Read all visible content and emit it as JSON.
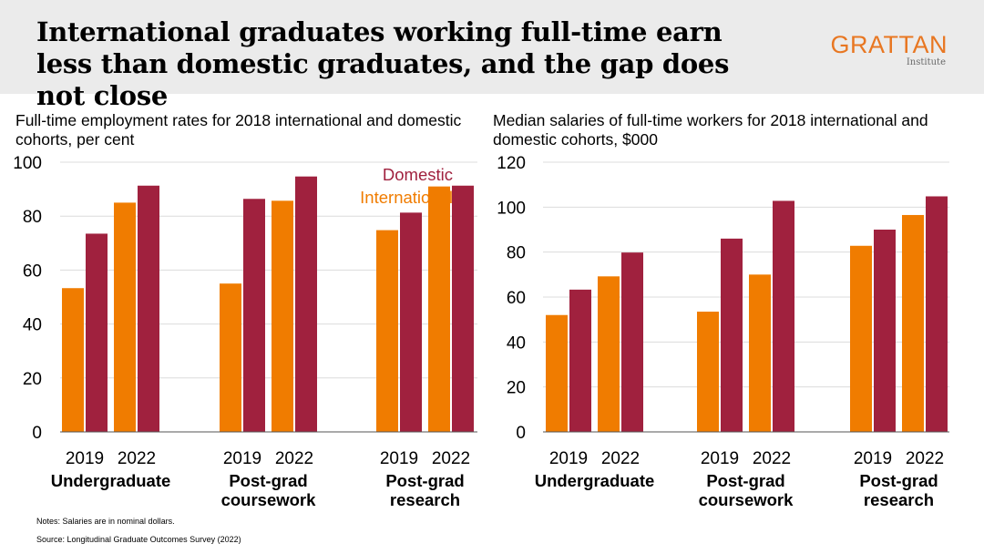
{
  "header": {
    "title": "International graduates working full-time earn less than domestic graduates, and the gap does not close",
    "logo_main": "GRATTAN",
    "logo_sub": "Institute"
  },
  "colors": {
    "international": "#f07c00",
    "domestic": "#a0213e",
    "gridline": "#dcdcdc",
    "axis": "#555555"
  },
  "chart_data": [
    {
      "type": "bar",
      "title": "Full-time employment rates for 2018 international and domestic cohorts, per cent",
      "groups": [
        "Undergraduate",
        "Post-grad coursework",
        "Post-grad research"
      ],
      "group_label_lines": [
        [
          "Undergraduate"
        ],
        [
          "Post-grad",
          "coursework"
        ],
        [
          "Post-grad",
          "research"
        ]
      ],
      "years": [
        "2019",
        "2022"
      ],
      "series": [
        {
          "name": "International",
          "values": [
            53.3,
            85.0,
            55.0,
            85.7,
            74.8,
            91.0
          ]
        },
        {
          "name": "Domestic",
          "values": [
            73.5,
            91.3,
            86.4,
            94.7,
            81.3,
            91.3
          ]
        }
      ],
      "ylim": [
        0,
        100
      ],
      "yticks": [
        0,
        20,
        40,
        60,
        80,
        100
      ],
      "grid": true,
      "legend": "top-right, inline labels"
    },
    {
      "type": "bar",
      "title": "Median salaries of full-time workers for 2018 international and domestic cohorts, $000",
      "groups": [
        "Undergraduate",
        "Post-grad coursework",
        "Post-grad research"
      ],
      "group_label_lines": [
        [
          "Undergraduate"
        ],
        [
          "Post-grad",
          "coursework"
        ],
        [
          "Post-grad",
          "research"
        ]
      ],
      "years": [
        "2019",
        "2022"
      ],
      "series": [
        {
          "name": "International",
          "values": [
            52.0,
            69.2,
            53.5,
            70.0,
            82.8,
            96.5
          ]
        },
        {
          "name": "Domestic",
          "values": [
            63.3,
            79.8,
            86.0,
            102.8,
            90.0,
            104.8
          ]
        }
      ],
      "ylim": [
        0,
        120
      ],
      "yticks": [
        0,
        20,
        40,
        60,
        80,
        100,
        120
      ],
      "grid": true
    }
  ],
  "footer": {
    "notes": "Notes: Salaries are in nominal dollars.",
    "source": "Source: Longitudinal Graduate Outcomes Survey (2022)"
  }
}
